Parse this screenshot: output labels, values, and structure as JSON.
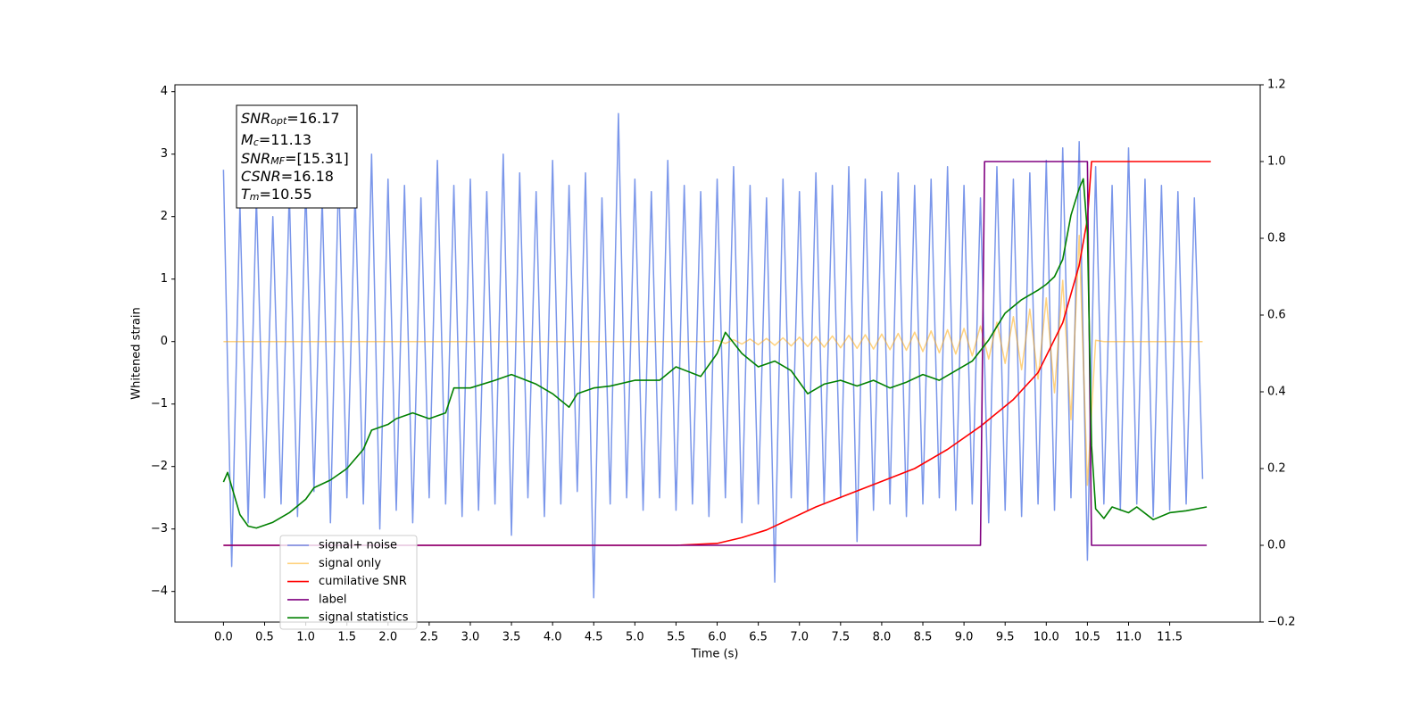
{
  "chart_data": {
    "type": "line",
    "xlabel": "Time (s)",
    "ylabel": "Whitened strain",
    "xlim": [
      -0.59,
      12.6
    ],
    "ylim": [
      -4.49,
      4.11
    ],
    "y2lim": [
      -0.2,
      1.2
    ],
    "xticks": [
      {
        "value": 0,
        "label": "0.0"
      },
      0.5,
      {
        "value": 1,
        "label": "1.0"
      },
      1.5,
      {
        "value": 2,
        "label": "2.0"
      },
      2.5,
      {
        "value": 3,
        "label": "3.0"
      },
      3.5,
      {
        "value": 4,
        "label": "4.0"
      },
      4.5,
      {
        "value": 5,
        "label": "5.0"
      },
      5.5,
      {
        "value": 6,
        "label": "6.0"
      },
      6.5,
      {
        "value": 7,
        "label": "7.0"
      },
      7.5,
      {
        "value": 8,
        "label": "8.0"
      },
      8.5,
      {
        "value": 9,
        "label": "9.0"
      },
      9.5,
      {
        "value": 10,
        "label": "10.0"
      },
      10.5,
      {
        "value": 11,
        "label": "11.0"
      },
      11.5
    ],
    "yticks": [
      {
        "value": -4,
        "label": "−4"
      },
      {
        "value": -3,
        "label": "−3"
      },
      {
        "value": -2,
        "label": "−2"
      },
      {
        "value": -1,
        "label": "−1"
      },
      0,
      1,
      2,
      3,
      4
    ],
    "y2ticks": [
      {
        "value": -0.2,
        "label": "−0.2"
      },
      {
        "value": 0,
        "label": "0.0"
      },
      0.2,
      0.4,
      0.6,
      0.8,
      {
        "value": 1,
        "label": "1.0"
      },
      1.2
    ],
    "legend": "lower left",
    "annotations": [
      {
        "symbol": "SNR",
        "sub": "opt",
        "text": "=16.17"
      },
      {
        "symbol": "M",
        "sub": "c",
        "text": "=11.13"
      },
      {
        "symbol": "SNR",
        "sub": "MF",
        "text": "=[15.31]"
      },
      {
        "symbol": "CSNR",
        "text": "=16.18"
      },
      {
        "symbol": "T",
        "sub": "m",
        "text": "=10.55"
      }
    ],
    "x": [
      0,
      0.1,
      0.2,
      0.3,
      0.4,
      0.5,
      0.6,
      0.7,
      0.8,
      0.9,
      1,
      1.1,
      1.2,
      1.3,
      1.4,
      1.5,
      1.6,
      1.7,
      1.8,
      1.9,
      2,
      2.1,
      2.2,
      2.3,
      2.4,
      2.5,
      2.6,
      2.7,
      2.8,
      2.9,
      3,
      3.1,
      3.2,
      3.3,
      3.4,
      3.5,
      3.6,
      3.7,
      3.8,
      3.9,
      4,
      4.1,
      4.2,
      4.3,
      4.4,
      4.5,
      4.6,
      4.7,
      4.8,
      4.9,
      5,
      5.1,
      5.2,
      5.3,
      5.4,
      5.5,
      5.6,
      5.7,
      5.8,
      5.9,
      6,
      6.1,
      6.2,
      6.3,
      6.4,
      6.5,
      6.6,
      6.7,
      6.8,
      6.9,
      7,
      7.1,
      7.2,
      7.3,
      7.4,
      7.5,
      7.6,
      7.7,
      7.8,
      7.9,
      8,
      8.1,
      8.2,
      8.3,
      8.4,
      8.5,
      8.6,
      8.7,
      8.8,
      8.9,
      9,
      9.1,
      9.2,
      9.3,
      9.4,
      9.5,
      9.6,
      9.7,
      9.8,
      9.9,
      10,
      10.1,
      10.2,
      10.3,
      10.4,
      10.5,
      10.6,
      10.7,
      10.8,
      10.9,
      11,
      11.1,
      11.2,
      11.3,
      11.4,
      11.5,
      11.6,
      11.7,
      11.8,
      11.9
    ],
    "series": [
      {
        "name": "signal+ noise",
        "color": "#4169e1",
        "values": [
          2.75,
          -3.6,
          2.2,
          -2.9,
          2.3,
          -2.5,
          2.0,
          -2.6,
          2.4,
          -2.8,
          2.5,
          -2.4,
          2.3,
          -2.9,
          2.7,
          -2.5,
          2.4,
          -2.6,
          3.0,
          -3.0,
          2.6,
          -2.7,
          2.5,
          -2.9,
          2.3,
          -2.5,
          2.9,
          -2.6,
          2.5,
          -2.8,
          2.6,
          -2.7,
          2.4,
          -2.6,
          3.0,
          -3.1,
          2.7,
          -2.5,
          2.4,
          -2.8,
          2.9,
          -2.6,
          2.5,
          -2.4,
          2.7,
          -4.1,
          2.3,
          -2.6,
          3.65,
          -2.5,
          2.6,
          -2.7,
          2.4,
          -2.5,
          2.9,
          -2.7,
          2.5,
          -2.6,
          2.4,
          -2.8,
          2.6,
          -2.5,
          2.8,
          -2.9,
          2.5,
          -2.6,
          2.3,
          -3.85,
          2.6,
          -2.5,
          2.4,
          -2.7,
          2.7,
          -2.6,
          2.5,
          -2.5,
          2.8,
          -3.2,
          2.6,
          -2.7,
          2.4,
          -2.6,
          2.7,
          -2.8,
          2.5,
          -2.6,
          2.6,
          -2.5,
          2.8,
          -2.7,
          2.5,
          -2.6,
          2.3,
          -2.9,
          2.8,
          -2.7,
          2.6,
          -2.8,
          2.7,
          -2.6,
          2.9,
          -2.7,
          3.1,
          -2.5,
          3.2,
          -3.5,
          2.8,
          -2.6,
          2.5,
          -2.7,
          3.1,
          -2.6,
          2.6,
          -2.8,
          2.5,
          -2.7,
          2.4,
          -2.6,
          2.3,
          -2.2
        ]
      },
      {
        "name": "signal only",
        "color": "#ffa500",
        "values": [
          0,
          0,
          0,
          0,
          0,
          0,
          0,
          0,
          0,
          0,
          0,
          0,
          0,
          0,
          0,
          0,
          0,
          0,
          0,
          0,
          0,
          0,
          0,
          0,
          0,
          0,
          0,
          0,
          0,
          0,
          0,
          0,
          0,
          0,
          0,
          0,
          0,
          0,
          0,
          0,
          0,
          0,
          0,
          0,
          0,
          0,
          0,
          0,
          0,
          0,
          0,
          0,
          0,
          0,
          0,
          0,
          0,
          0,
          0,
          0,
          0.02,
          -0.03,
          0.03,
          -0.04,
          0.04,
          -0.05,
          0.05,
          -0.06,
          0.06,
          -0.07,
          0.07,
          -0.08,
          0.08,
          -0.09,
          0.09,
          -0.1,
          0.1,
          -0.11,
          0.11,
          -0.12,
          0.12,
          -0.13,
          0.13,
          -0.14,
          0.15,
          -0.16,
          0.17,
          -0.18,
          0.19,
          -0.2,
          0.21,
          -0.23,
          0.25,
          -0.28,
          0.31,
          -0.35,
          0.4,
          -0.45,
          0.52,
          -0.6,
          0.7,
          -0.82,
          0.98,
          -1.25,
          1.7,
          -2.3,
          0.02,
          0,
          0,
          0,
          0,
          0,
          0,
          0,
          0,
          0,
          0,
          0,
          0,
          0
        ]
      },
      {
        "name": "cumilative SNR",
        "color": "#ff0000",
        "axis": "y2",
        "x": [
          0,
          5.5,
          6.0,
          6.3,
          6.6,
          6.9,
          7.2,
          7.5,
          7.8,
          8.1,
          8.4,
          8.8,
          9.2,
          9.6,
          9.9,
          10.2,
          10.4,
          10.5,
          10.55,
          12.0
        ],
        "values": [
          0,
          0,
          0.005,
          0.02,
          0.04,
          0.07,
          0.1,
          0.125,
          0.15,
          0.175,
          0.2,
          0.25,
          0.31,
          0.38,
          0.45,
          0.58,
          0.73,
          0.85,
          1.0,
          1.0
        ]
      },
      {
        "name": "label",
        "color": "#800080",
        "axis": "y2",
        "x": [
          0,
          9.2,
          9.25,
          10.5,
          10.55,
          11.95
        ],
        "values": [
          0,
          0,
          1,
          1,
          0,
          0
        ]
      },
      {
        "name": "signal statistics",
        "color": "#008000",
        "axis": "y2",
        "x": [
          0,
          0.05,
          0.2,
          0.3,
          0.4,
          0.6,
          0.8,
          1.0,
          1.1,
          1.3,
          1.5,
          1.7,
          1.8,
          2.0,
          2.1,
          2.3,
          2.5,
          2.7,
          2.8,
          3.0,
          3.3,
          3.5,
          3.8,
          4.0,
          4.2,
          4.3,
          4.5,
          4.7,
          5.0,
          5.3,
          5.5,
          5.8,
          6.0,
          6.1,
          6.3,
          6.5,
          6.7,
          6.9,
          7.1,
          7.3,
          7.5,
          7.7,
          7.9,
          8.1,
          8.3,
          8.5,
          8.7,
          8.9,
          9.1,
          9.3,
          9.5,
          9.7,
          9.9,
          10.0,
          10.1,
          10.2,
          10.3,
          10.4,
          10.45,
          10.5,
          10.55,
          10.6,
          10.7,
          10.8,
          11.0,
          11.1,
          11.3,
          11.5,
          11.7,
          11.95
        ],
        "values": [
          0.165,
          0.19,
          0.08,
          0.05,
          0.045,
          0.06,
          0.085,
          0.12,
          0.15,
          0.17,
          0.2,
          0.25,
          0.3,
          0.315,
          0.33,
          0.345,
          0.33,
          0.345,
          0.41,
          0.41,
          0.43,
          0.445,
          0.42,
          0.395,
          0.36,
          0.395,
          0.41,
          0.415,
          0.43,
          0.43,
          0.465,
          0.44,
          0.5,
          0.555,
          0.5,
          0.465,
          0.48,
          0.455,
          0.395,
          0.42,
          0.43,
          0.415,
          0.43,
          0.41,
          0.425,
          0.445,
          0.43,
          0.455,
          0.48,
          0.535,
          0.605,
          0.64,
          0.665,
          0.68,
          0.7,
          0.745,
          0.86,
          0.93,
          0.955,
          0.815,
          0.26,
          0.095,
          0.07,
          0.1,
          0.085,
          0.1,
          0.067,
          0.085,
          0.09,
          0.1
        ]
      }
    ]
  }
}
